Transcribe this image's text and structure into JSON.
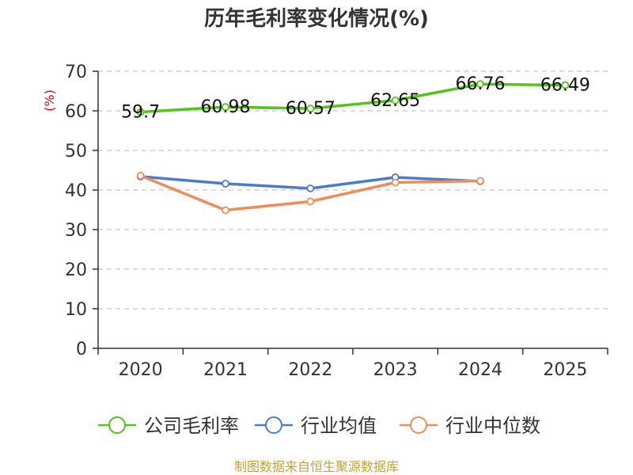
{
  "chart_data": {
    "type": "line",
    "title": "历年毛利率变化情况(%)",
    "ylabel": "(%)",
    "xlabel": "",
    "categories": [
      "2020",
      "2021",
      "2022",
      "2023",
      "2024",
      "2025"
    ],
    "ylim": [
      0,
      70
    ],
    "yticks": [
      0,
      10,
      20,
      30,
      40,
      50,
      60,
      70
    ],
    "grid": true,
    "legend_position": "bottom",
    "series": [
      {
        "name": "公司毛利率",
        "color": "#52c41a",
        "values": [
          59.7,
          60.98,
          60.57,
          62.65,
          66.76,
          66.49
        ],
        "labels": [
          "59.7",
          "60.98",
          "60.57",
          "62.65",
          "66.76",
          "66.49"
        ],
        "show_labels": true
      },
      {
        "name": "行业均值",
        "color": "#4a7bd0",
        "values": [
          43.4,
          41.6,
          40.4,
          43.2,
          42.2,
          null
        ],
        "show_labels": false
      },
      {
        "name": "行业中位数",
        "color": "#f08c55",
        "values": [
          43.6,
          34.9,
          37.1,
          41.9,
          42.3,
          null
        ],
        "show_labels": false
      }
    ]
  },
  "source_note": "制图数据来自恒生聚源数据库"
}
